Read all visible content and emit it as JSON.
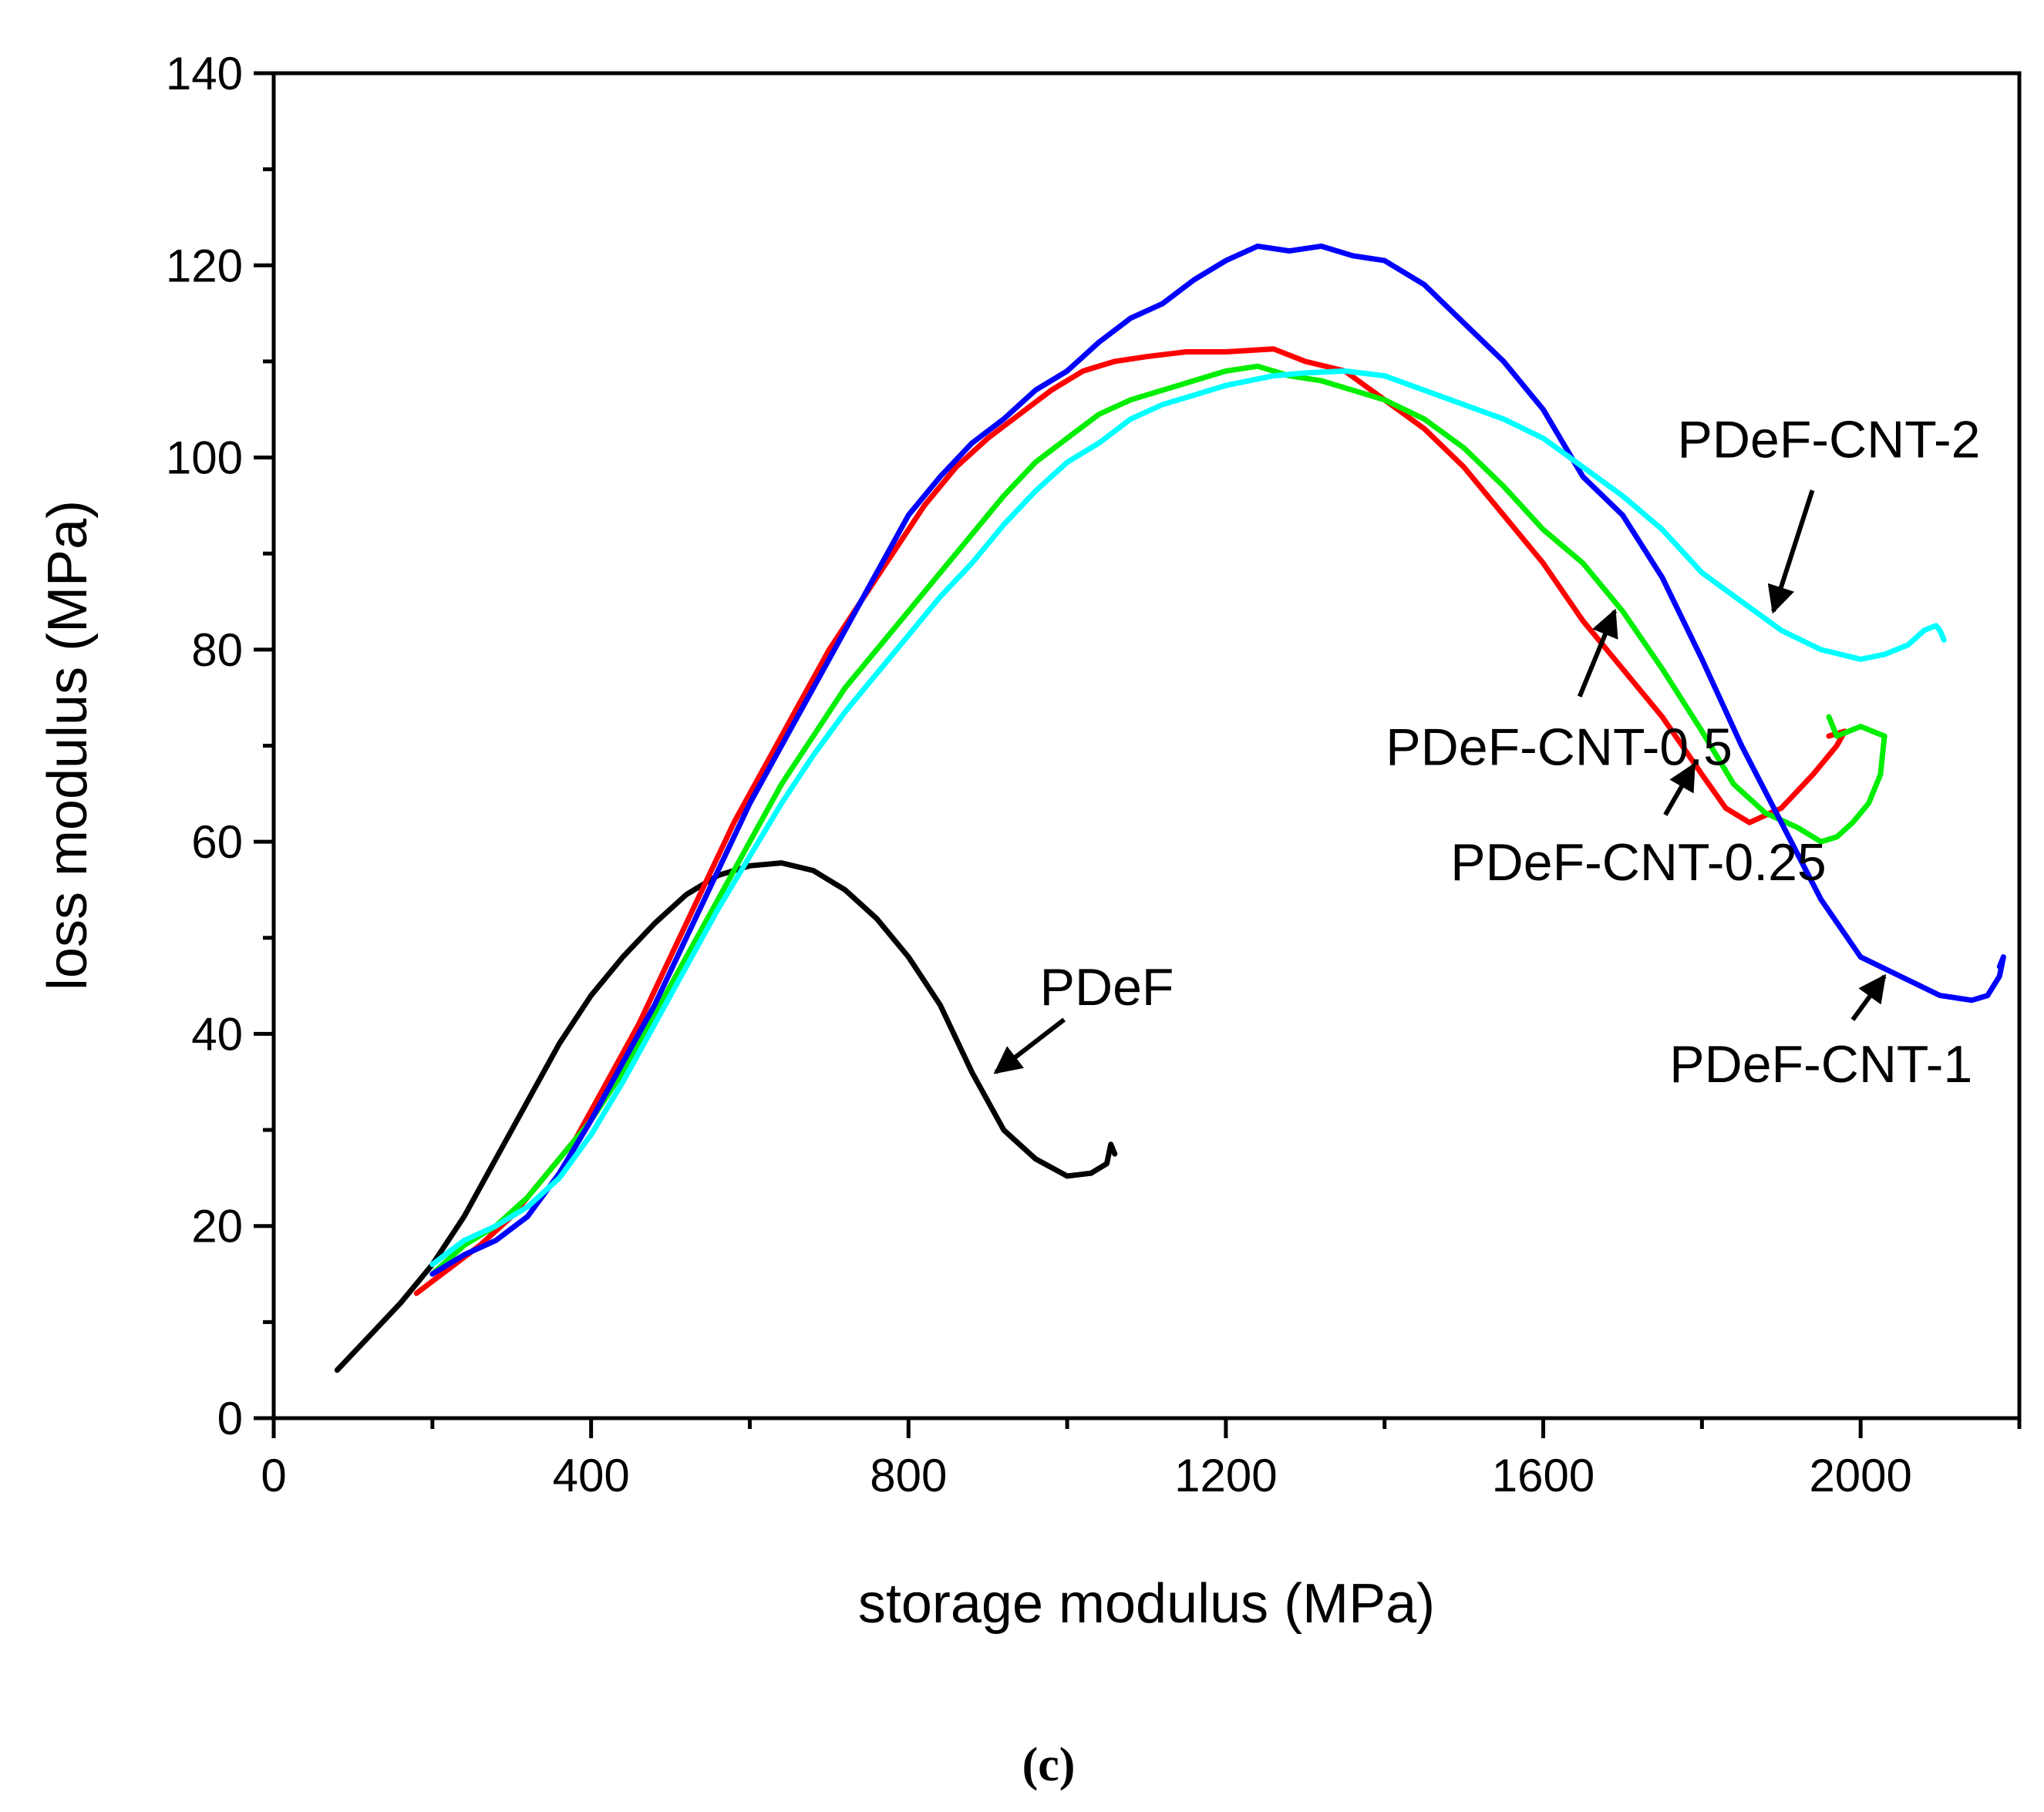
{
  "chart_data": {
    "type": "line",
    "title": "",
    "caption": "(c)",
    "xlabel": "storage modulus (MPa)",
    "ylabel": "loss modulus (MPa)",
    "xlim": [
      0,
      2200
    ],
    "ylim": [
      0,
      140
    ],
    "xticks": [
      0,
      400,
      800,
      1200,
      1600,
      2000
    ],
    "yticks": [
      0,
      20,
      40,
      60,
      80,
      100,
      120,
      140
    ],
    "series": [
      {
        "name": "PDeF",
        "color": "#000000",
        "x": [
          80,
          120,
          160,
          200,
          240,
          280,
          320,
          360,
          400,
          440,
          480,
          520,
          560,
          600,
          640,
          680,
          720,
          760,
          800,
          840,
          880,
          920,
          960,
          1000,
          1030,
          1050,
          1055,
          1060
        ],
        "y": [
          5,
          8.5,
          12,
          16,
          21,
          27,
          33,
          39,
          44,
          48,
          51.5,
          54.5,
          56.5,
          57.5,
          57.8,
          57,
          55,
          52,
          48,
          43,
          36,
          30,
          27,
          25.2,
          25.5,
          26.5,
          28.5,
          27.5
        ]
      },
      {
        "name": "PDeF-CNT-0.25",
        "color": "#ff0000",
        "x": [
          180,
          220,
          260,
          300,
          340,
          380,
          420,
          460,
          500,
          540,
          580,
          620,
          660,
          700,
          740,
          780,
          820,
          860,
          900,
          940,
          980,
          1020,
          1060,
          1100,
          1150,
          1200,
          1260,
          1300,
          1350,
          1400,
          1450,
          1500,
          1550,
          1600,
          1650,
          1700,
          1750,
          1800,
          1830,
          1860,
          1900,
          1940,
          1970,
          1980,
          1960
        ],
        "y": [
          13,
          15.5,
          18,
          21,
          25,
          29,
          35,
          41,
          48,
          55,
          62,
          68,
          74,
          80,
          85,
          90,
          95,
          99,
          102,
          104.5,
          107,
          109,
          110,
          110.5,
          111,
          111,
          111.3,
          110,
          109,
          106,
          103,
          99,
          94,
          89,
          83,
          78,
          73,
          67,
          63.5,
          62,
          63.5,
          67,
          70,
          71.5,
          71
        ]
      },
      {
        "name": "PDeF-CNT-0.5",
        "color": "#00ee00",
        "x": [
          200,
          240,
          280,
          320,
          360,
          400,
          440,
          480,
          520,
          560,
          600,
          640,
          680,
          720,
          760,
          800,
          840,
          880,
          920,
          960,
          1000,
          1040,
          1080,
          1120,
          1160,
          1200,
          1240,
          1280,
          1320,
          1360,
          1400,
          1450,
          1500,
          1550,
          1600,
          1650,
          1700,
          1750,
          1800,
          1840,
          1880,
          1920,
          1950,
          1970,
          1990,
          2010,
          2025,
          2030,
          2000,
          1970,
          1960
        ],
        "y": [
          15,
          18,
          20,
          23,
          27,
          31,
          36,
          42,
          48,
          54,
          60,
          66,
          71,
          76,
          80,
          84,
          88,
          92,
          96,
          99.5,
          102,
          104.5,
          106,
          107,
          108,
          109,
          109.5,
          108.5,
          108,
          107,
          106,
          104,
          101,
          97,
          92.5,
          89,
          84,
          78,
          71.5,
          66,
          63,
          61.5,
          60,
          60.5,
          62,
          64,
          67,
          71,
          72,
          71,
          73
        ]
      },
      {
        "name": "PDeF-CNT-1",
        "color": "#0000ff",
        "x": [
          200,
          240,
          280,
          320,
          360,
          400,
          440,
          480,
          520,
          560,
          600,
          640,
          680,
          720,
          760,
          800,
          840,
          880,
          920,
          960,
          1000,
          1040,
          1080,
          1120,
          1160,
          1200,
          1240,
          1280,
          1320,
          1360,
          1400,
          1450,
          1500,
          1550,
          1600,
          1650,
          1700,
          1750,
          1800,
          1850,
          1900,
          1950,
          2000,
          2050,
          2100,
          2140,
          2160,
          2175,
          2180,
          2175
        ],
        "y": [
          15,
          17,
          18.5,
          21,
          25.5,
          31,
          37,
          43,
          50,
          57,
          64,
          70,
          76,
          82,
          88,
          94,
          98,
          101.5,
          104,
          107,
          109,
          112,
          114.5,
          116,
          118.5,
          120.5,
          122,
          121.5,
          122,
          121,
          120.5,
          118,
          114,
          110,
          105,
          98,
          94,
          87.5,
          79,
          70,
          62,
          54,
          48,
          46,
          44,
          43.5,
          44,
          46,
          48,
          47
        ]
      },
      {
        "name": "PDeF-CNT-2",
        "color": "#00ffff",
        "x": [
          200,
          240,
          280,
          320,
          360,
          400,
          440,
          480,
          520,
          560,
          600,
          640,
          680,
          720,
          760,
          800,
          840,
          880,
          920,
          960,
          1000,
          1040,
          1080,
          1120,
          1160,
          1200,
          1260,
          1300,
          1350,
          1400,
          1450,
          1500,
          1550,
          1600,
          1650,
          1700,
          1750,
          1800,
          1850,
          1900,
          1950,
          2000,
          2030,
          2060,
          2080,
          2095,
          2100,
          2105
        ],
        "y": [
          16,
          18.5,
          20,
          22,
          25,
          29.5,
          35,
          41,
          47,
          53,
          58.5,
          64,
          69,
          73.5,
          77.5,
          81.5,
          85.5,
          89,
          93,
          96.5,
          99.5,
          101.5,
          104,
          105.5,
          106.5,
          107.5,
          108.5,
          108.8,
          109,
          108.5,
          107,
          105.5,
          104,
          102,
          99,
          96,
          92.5,
          88,
          85,
          82,
          80,
          79,
          79.5,
          80.5,
          82,
          82.5,
          82,
          81
        ]
      }
    ],
    "annotations": [
      {
        "text": "PDeF",
        "series": "PDeF",
        "arrow_to": [
          910,
          36
        ],
        "label_at": [
          1050,
          43
        ]
      },
      {
        "text": "PDeF-CNT-0.5",
        "series": "PDeF-CNT-0.5",
        "arrow_to": [
          1690,
          84
        ],
        "label_at": [
          1620,
          68
        ]
      },
      {
        "text": "PDeF-CNT-0.25",
        "series": "PDeF-CNT-0.25",
        "arrow_to": [
          1790,
          68
        ],
        "label_at": [
          1720,
          56
        ]
      },
      {
        "text": "PDeF-CNT-1",
        "series": "PDeF-CNT-1",
        "arrow_to": [
          2030,
          46
        ],
        "label_at": [
          1950,
          35
        ]
      },
      {
        "text": "PDeF-CNT-2",
        "series": "PDeF-CNT-2",
        "arrow_to": [
          1890,
          84
        ],
        "label_at": [
          1960,
          100
        ]
      }
    ]
  }
}
